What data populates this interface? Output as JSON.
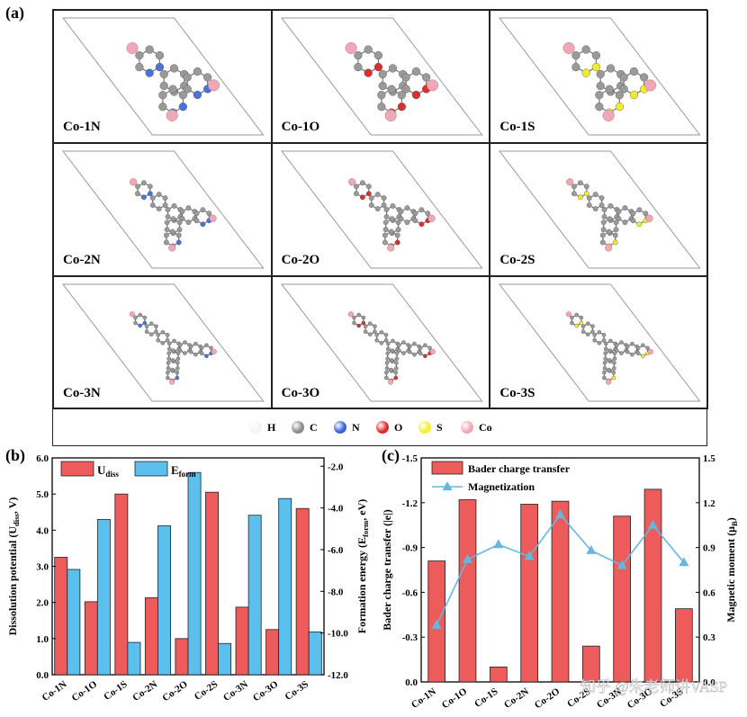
{
  "panels": {
    "a": "(a)",
    "b": "(b)",
    "c": "(c)"
  },
  "structures": [
    {
      "label": "Co-1N",
      "atom": "N",
      "color": "#4a72d8",
      "level": 1
    },
    {
      "label": "Co-1O",
      "atom": "O",
      "color": "#d83030",
      "level": 1
    },
    {
      "label": "Co-1S",
      "atom": "S",
      "color": "#f2ea2a",
      "level": 1
    },
    {
      "label": "Co-2N",
      "atom": "N",
      "color": "#4a72d8",
      "level": 2
    },
    {
      "label": "Co-2O",
      "atom": "O",
      "color": "#d83030",
      "level": 2
    },
    {
      "label": "Co-2S",
      "atom": "S",
      "color": "#f2ea2a",
      "level": 2
    },
    {
      "label": "Co-3N",
      "atom": "N",
      "color": "#4a72d8",
      "level": 3
    },
    {
      "label": "Co-3O",
      "atom": "O",
      "color": "#d83030",
      "level": 3
    },
    {
      "label": "Co-3S",
      "atom": "S",
      "color": "#f2ea2a",
      "level": 3
    }
  ],
  "atom_legend": [
    {
      "label": "H",
      "color": "#f4f4f4"
    },
    {
      "label": "C",
      "color": "#8c8c8c"
    },
    {
      "label": "N",
      "color": "#3a5fe0"
    },
    {
      "label": "O",
      "color": "#e02a2a"
    },
    {
      "label": "S",
      "color": "#f5ef2e"
    },
    {
      "label": "Co",
      "color": "#f0a8b8"
    }
  ],
  "colors": {
    "bar_red": "#ee5b5b",
    "bar_blue": "#5bc0ee",
    "line": "#64b8e0",
    "carbon": "#9a9a9a",
    "cobalt": "#f0a8b8"
  },
  "chart_data": [
    {
      "type": "bar",
      "panel": "b",
      "categories": [
        "Co-1N",
        "Co-1O",
        "Co-1S",
        "Co-2N",
        "Co-2O",
        "Co-2S",
        "Co-3N",
        "Co-3O",
        "Co-3S"
      ],
      "series": [
        {
          "name": "U",
          "name_sub": "diss",
          "axis": "left",
          "values": [
            3.25,
            2.02,
            5.0,
            2.13,
            1.0,
            5.05,
            1.87,
            1.25,
            4.6
          ]
        },
        {
          "name": "E",
          "name_sub": "form",
          "axis": "right",
          "values": [
            -6.95,
            -4.55,
            -10.45,
            -4.85,
            -2.3,
            -10.5,
            -4.35,
            -3.55,
            -9.95
          ]
        }
      ],
      "ylabel": {
        "text": "Dissolution potential (U",
        "sub": "diss",
        "tail": ", V)"
      },
      "y2label": {
        "text": "Formation energy (E",
        "sub": "form",
        "tail": ", eV)"
      },
      "ylim": [
        0,
        6
      ],
      "y2lim": [
        -12,
        -1.6
      ],
      "yticks": [
        "0.0",
        "1.0",
        "2.0",
        "3.0",
        "4.0",
        "5.0",
        "6.0"
      ],
      "y2ticks": [
        "-12.0",
        "-10.0",
        "-8.0",
        "-6.0",
        "-4.0",
        "-2.0"
      ],
      "y2tick_values": [
        -12,
        -10,
        -8,
        -6,
        -4,
        -2
      ],
      "legend": "top-left"
    },
    {
      "type": "bar",
      "panel": "c",
      "categories": [
        "Co-1N",
        "Co-1O",
        "Co-1S",
        "Co-2N",
        "Co-2O",
        "Co-2S",
        "Co-3N",
        "Co-3O",
        "Co-3S"
      ],
      "series": [
        {
          "name": "Bader charge transfer",
          "kind": "bar",
          "axis": "left",
          "values": [
            -0.81,
            -1.22,
            -0.1,
            -1.19,
            -1.21,
            -0.24,
            -1.11,
            -1.29,
            -0.49
          ]
        },
        {
          "name": "Magnetization",
          "kind": "line",
          "axis": "right",
          "values": [
            0.38,
            0.82,
            0.92,
            0.84,
            1.12,
            0.88,
            0.78,
            1.05,
            0.8
          ]
        }
      ],
      "ylabel": {
        "text": "Bader charge transfer (|e|)"
      },
      "y2label": {
        "text": "Magnetic moment (μ",
        "sub": "B",
        "tail": ")"
      },
      "ylim": [
        0,
        -1.5
      ],
      "y2lim": [
        0,
        1.5
      ],
      "yticks": [
        "0.0",
        "-0.3",
        "-0.6",
        "-0.9",
        "-1.2",
        "-1.5"
      ],
      "y2ticks": [
        "0.0",
        "0.3",
        "0.6",
        "0.9",
        "1.2",
        "1.5"
      ],
      "legend": "top-left"
    }
  ],
  "watermark": "知乎 @朱老师讲VASP"
}
